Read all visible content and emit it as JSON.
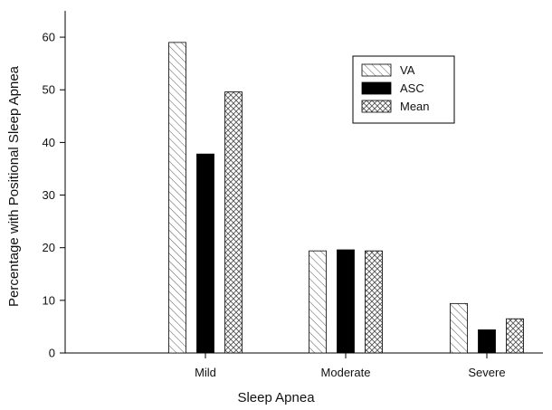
{
  "chart_data": {
    "type": "bar",
    "title": "",
    "xlabel": "Sleep Apnea",
    "ylabel": "Percentage with Positional Sleep Apnea",
    "categories": [
      "Mild",
      "Moderate",
      "Severe"
    ],
    "ylim": [
      0,
      65
    ],
    "yticks": [
      0,
      10,
      20,
      30,
      40,
      50,
      60
    ],
    "grid": false,
    "legend_position": "top-right",
    "series": [
      {
        "name": "VA",
        "values": [
          59,
          19.4,
          9.4
        ],
        "fill": "diagonal-hatch",
        "color": "#000000"
      },
      {
        "name": "ASC",
        "values": [
          37.8,
          19.6,
          4.4
        ],
        "fill": "solid",
        "color": "#000000"
      },
      {
        "name": "Mean",
        "values": [
          49.6,
          19.4,
          6.5
        ],
        "fill": "cross-hatch",
        "color": "#000000"
      }
    ]
  }
}
